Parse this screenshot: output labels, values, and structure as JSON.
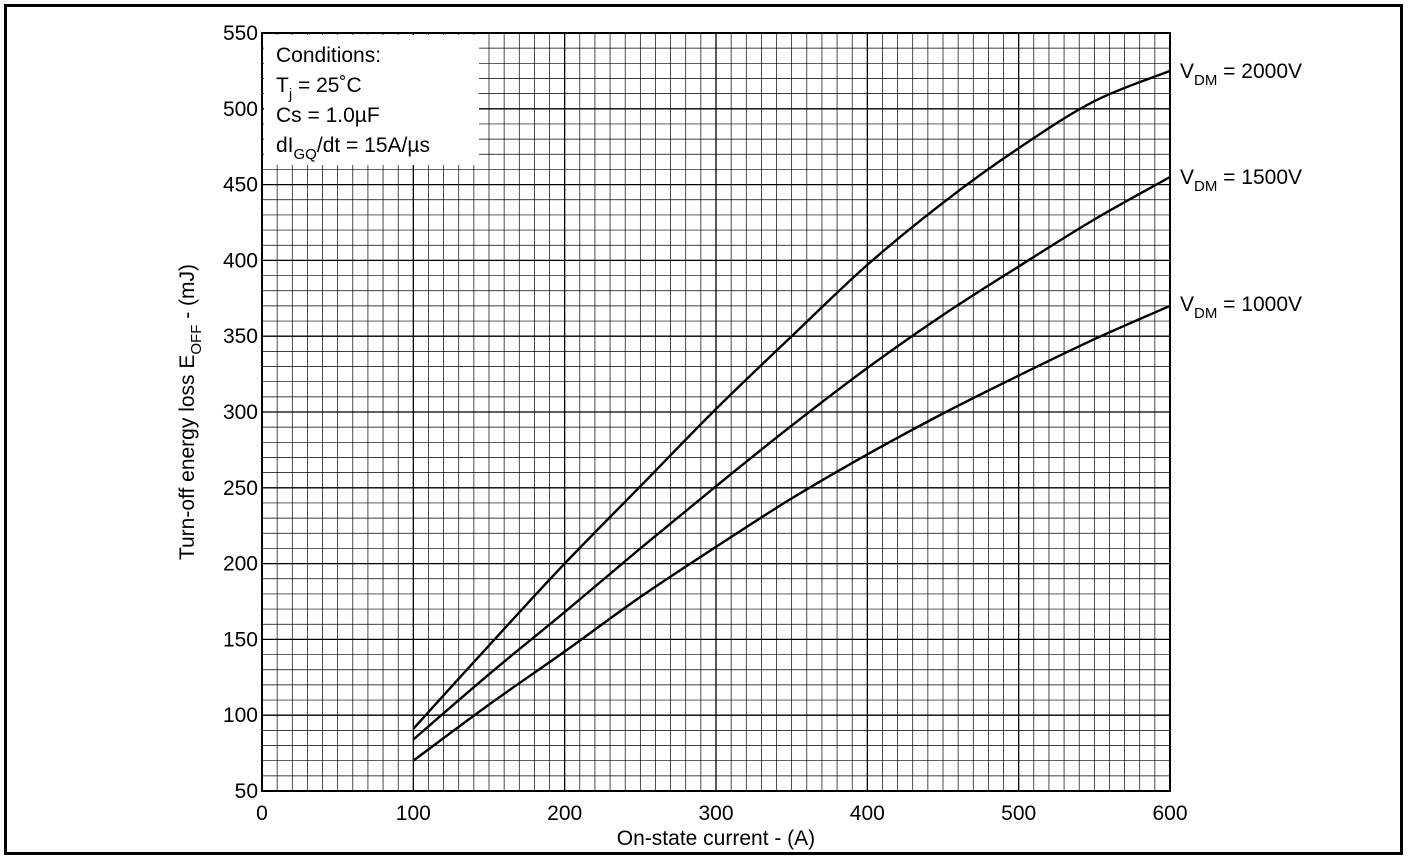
{
  "chart_data": {
    "type": "line",
    "xlabel": "On-state current - (A)",
    "ylabel": {
      "main": "Turn-off energy loss E",
      "sub": "OFF",
      "unit": " - (mJ)"
    },
    "xlim": [
      0,
      600
    ],
    "ylim": [
      50,
      550
    ],
    "x_ticks": [
      0,
      100,
      200,
      300,
      400,
      500,
      600
    ],
    "y_ticks": [
      50,
      100,
      150,
      200,
      250,
      300,
      350,
      400,
      450,
      500,
      550
    ],
    "grid": true,
    "conditions": {
      "heading": "Conditions:",
      "tj": {
        "sym": "T",
        "sub": "j",
        "rest": " = 25˚C"
      },
      "cs": "Cs = 1.0µF",
      "di": {
        "pre": "dI",
        "sub": "GQ",
        "rest": "/dt = 15A/µs"
      }
    },
    "series": [
      {
        "name": {
          "sym": "V",
          "sub": "DM",
          "rest": " = 2000V"
        },
        "x": [
          100,
          150,
          200,
          250,
          300,
          350,
          400,
          450,
          500,
          550,
          600
        ],
        "y": [
          91,
          146,
          200,
          251,
          302,
          350,
          397,
          438,
          474,
          505,
          525
        ]
      },
      {
        "name": {
          "sym": "V",
          "sub": "DM",
          "rest": " = 1500V"
        },
        "x": [
          100,
          150,
          200,
          250,
          300,
          350,
          400,
          450,
          500,
          550,
          600
        ],
        "y": [
          84,
          127,
          168,
          210,
          251,
          291,
          329,
          364,
          396,
          427,
          455
        ]
      },
      {
        "name": {
          "sym": "V",
          "sub": "DM",
          "rest": " = 1000V"
        },
        "x": [
          100,
          150,
          200,
          250,
          300,
          350,
          400,
          450,
          500,
          550,
          600
        ],
        "y": [
          70,
          107,
          142,
          178,
          211,
          243,
          272,
          299,
          324,
          348,
          370
        ]
      }
    ]
  }
}
